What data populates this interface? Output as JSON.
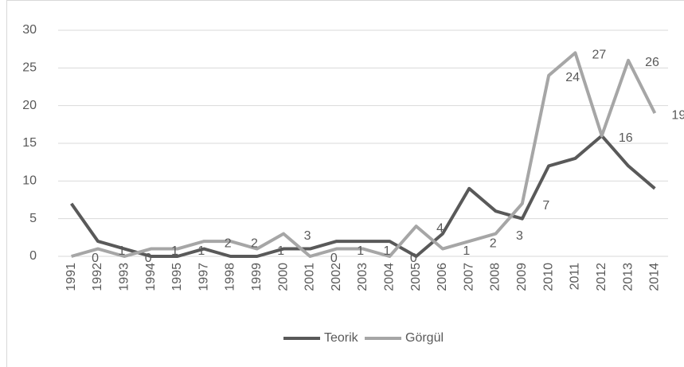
{
  "chart_data": {
    "type": "line",
    "categories": [
      "1991",
      "1992",
      "1993",
      "1994",
      "1995",
      "1997",
      "1998",
      "1999",
      "2000",
      "2001",
      "2002",
      "2003",
      "2004",
      "2005",
      "2006",
      "2007",
      "2008",
      "2009",
      "2010",
      "2011",
      "2012",
      "2013",
      "2014"
    ],
    "series": [
      {
        "name": "Teorik",
        "color": "#595959",
        "values": [
          7,
          2,
          1,
          0,
          0,
          1,
          0,
          0,
          1,
          1,
          2,
          2,
          2,
          0,
          3,
          9,
          6,
          5,
          12,
          13,
          16,
          12,
          9
        ]
      },
      {
        "name": "Görgül",
        "color": "#a6a6a6",
        "values": [
          0,
          1,
          0,
          1,
          1,
          2,
          2,
          1,
          3,
          0,
          1,
          1,
          0,
          4,
          1,
          2,
          3,
          7,
          24,
          27,
          16,
          26,
          19
        ],
        "data_labels": true
      }
    ],
    "ylim": [
      0,
      30
    ],
    "yticks": [
      0,
      5,
      10,
      15,
      20,
      25,
      30
    ],
    "grid": true,
    "legend": "bottom"
  }
}
